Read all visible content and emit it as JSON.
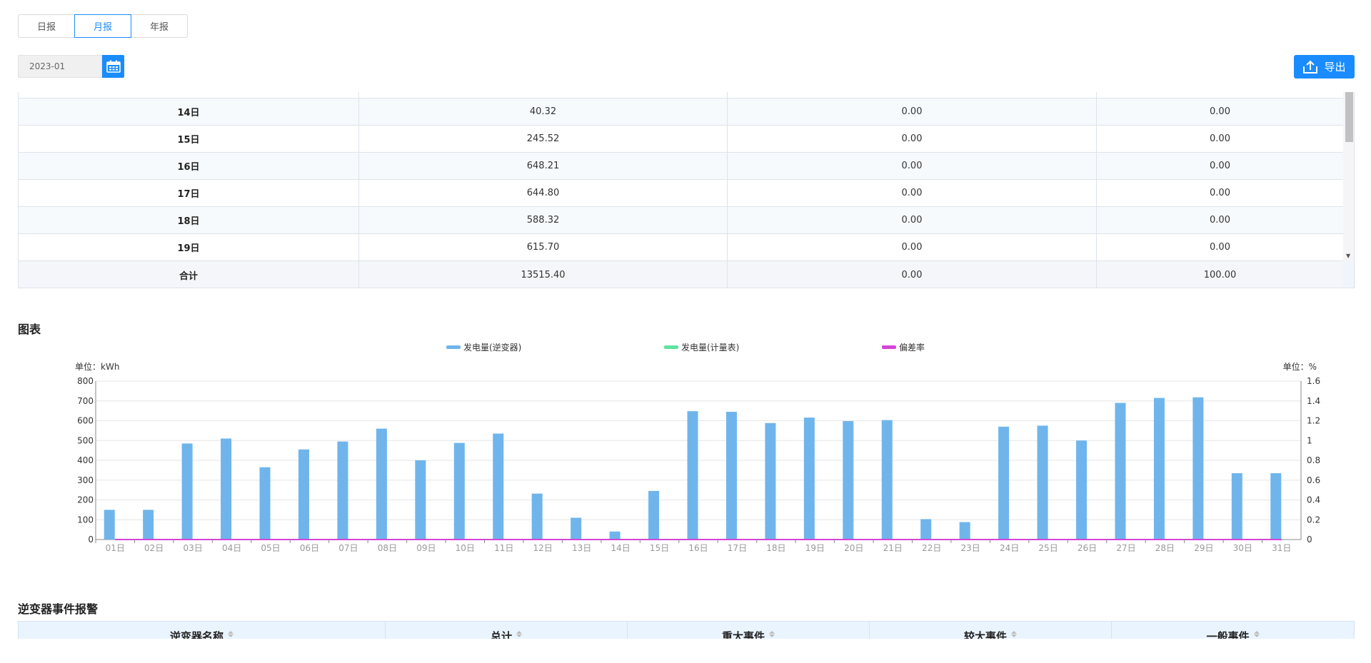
{
  "tabs": [
    {
      "label": "日报",
      "active": false
    },
    {
      "label": "月报",
      "active": true
    },
    {
      "label": "年报",
      "active": false
    }
  ],
  "date_value": "2023-01",
  "export_label": "导出",
  "table": {
    "rows": [
      [
        "14日",
        "40.32",
        "0.00",
        "0.00"
      ],
      [
        "15日",
        "245.52",
        "0.00",
        "0.00"
      ],
      [
        "16日",
        "648.21",
        "0.00",
        "0.00"
      ],
      [
        "17日",
        "644.80",
        "0.00",
        "0.00"
      ],
      [
        "18日",
        "588.32",
        "0.00",
        "0.00"
      ],
      [
        "19日",
        "615.70",
        "0.00",
        "0.00"
      ]
    ],
    "total": [
      "合计",
      "13515.40",
      "0.00",
      "100.00"
    ]
  },
  "chart_section_title": "图表",
  "chart_data": {
    "type": "bar",
    "categories": [
      "01日",
      "02日",
      "03日",
      "04日",
      "05日",
      "06日",
      "07日",
      "08日",
      "09日",
      "10日",
      "11日",
      "12日",
      "13日",
      "14日",
      "15日",
      "16日",
      "17日",
      "18日",
      "19日",
      "20日",
      "21日",
      "22日",
      "23日",
      "24日",
      "25日",
      "26日",
      "27日",
      "28日",
      "29日",
      "30日",
      "31日"
    ],
    "series": [
      {
        "name": "发电量(逆变器)",
        "color": "#6fb5ec",
        "values": [
          150,
          150,
          485,
          510,
          365,
          455,
          495,
          560,
          400,
          488,
          535,
          232,
          110,
          40.32,
          245.52,
          648.21,
          644.8,
          588.32,
          615.7,
          598,
          603,
          103,
          88,
          570,
          575,
          500,
          690,
          715,
          718,
          335,
          335
        ]
      },
      {
        "name": "发电量(计量表)",
        "color": "#5ee3a1",
        "values": [
          0,
          0,
          0,
          0,
          0,
          0,
          0,
          0,
          0,
          0,
          0,
          0,
          0,
          0,
          0,
          0,
          0,
          0,
          0,
          0,
          0,
          0,
          0,
          0,
          0,
          0,
          0,
          0,
          0,
          0,
          0
        ]
      },
      {
        "name": "偏差率",
        "color": "#d545d8",
        "values": [
          0,
          0,
          0,
          0,
          0,
          0,
          0,
          0,
          0,
          0,
          0,
          0,
          0,
          0,
          0,
          0,
          0,
          0,
          0,
          0,
          0,
          0,
          0,
          0,
          0,
          0,
          0,
          0,
          0,
          0,
          0
        ]
      }
    ],
    "y_left": {
      "unit_label": "单位：kWh",
      "ticks": [
        "0",
        "100",
        "200",
        "300",
        "400",
        "500",
        "600",
        "700",
        "800"
      ],
      "ylim": [
        0,
        800
      ]
    },
    "y_right": {
      "unit_label": "单位：%",
      "ticks": [
        "0",
        "0.2",
        "0.4",
        "0.6",
        "0.8",
        "1",
        "1.2",
        "1.4",
        "1.6"
      ],
      "ylim": [
        0,
        1.6
      ]
    },
    "legend_position": "top-center",
    "grid": true
  },
  "bottom_section_title": "逆变器事件报警",
  "bottom_table_headers": [
    "逆变器名称",
    "总计",
    "重大事件",
    "较大事件",
    "一般事件"
  ]
}
